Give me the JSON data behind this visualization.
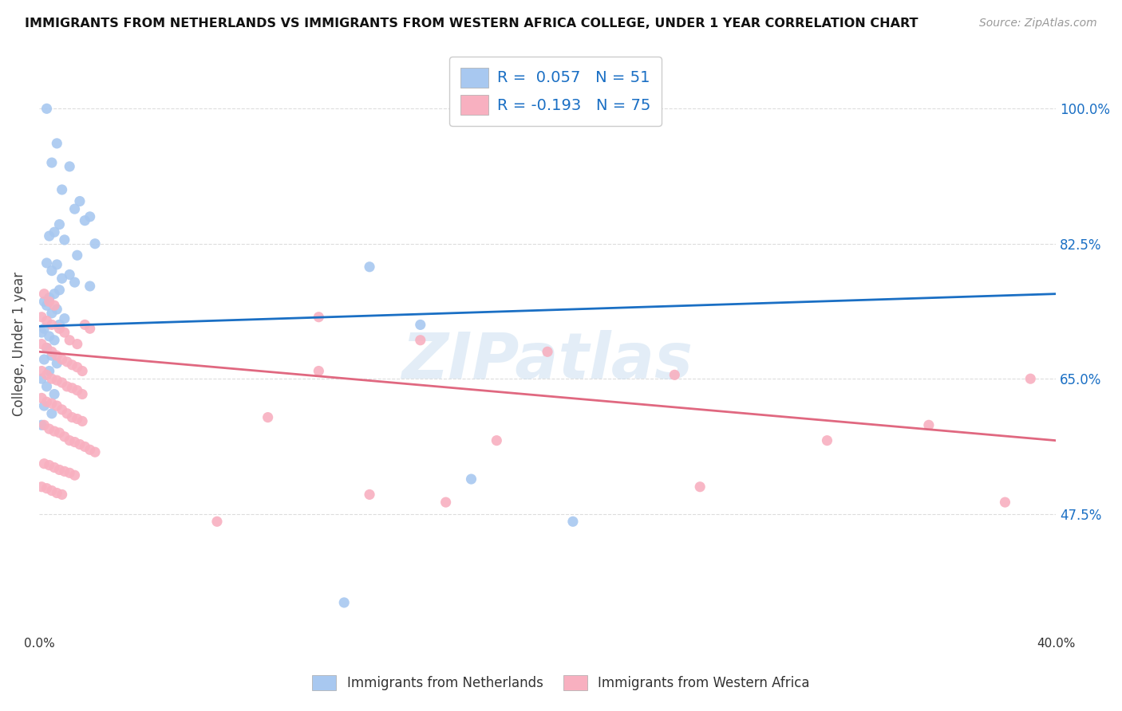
{
  "title": "IMMIGRANTS FROM NETHERLANDS VS IMMIGRANTS FROM WESTERN AFRICA COLLEGE, UNDER 1 YEAR CORRELATION CHART",
  "source": "Source: ZipAtlas.com",
  "ylabel": "College, Under 1 year",
  "xlim": [
    0.0,
    0.4
  ],
  "ylim": [
    0.32,
    1.07
  ],
  "yticks": [
    0.475,
    0.65,
    0.825,
    1.0
  ],
  "ytick_labels": [
    "47.5%",
    "65.0%",
    "82.5%",
    "100.0%"
  ],
  "xticks": [
    0.0,
    0.05,
    0.1,
    0.15,
    0.2,
    0.25,
    0.3,
    0.35,
    0.4
  ],
  "xtick_labels": [
    "0.0%",
    "",
    "",
    "",
    "",
    "",
    "",
    "",
    "40.0%"
  ],
  "blue_R": 0.057,
  "blue_N": 51,
  "pink_R": -0.193,
  "pink_N": 75,
  "blue_color": "#a8c8f0",
  "pink_color": "#f8b0c0",
  "blue_line_color": "#1a6fc4",
  "pink_line_color": "#e06880",
  "blue_line": [
    [
      0.0,
      0.718
    ],
    [
      0.4,
      0.76
    ]
  ],
  "pink_line": [
    [
      0.0,
      0.685
    ],
    [
      0.4,
      0.57
    ]
  ],
  "blue_scatter": [
    [
      0.003,
      1.0
    ],
    [
      0.007,
      0.955
    ],
    [
      0.005,
      0.93
    ],
    [
      0.012,
      0.925
    ],
    [
      0.009,
      0.895
    ],
    [
      0.016,
      0.88
    ],
    [
      0.014,
      0.87
    ],
    [
      0.02,
      0.86
    ],
    [
      0.008,
      0.85
    ],
    [
      0.018,
      0.855
    ],
    [
      0.006,
      0.84
    ],
    [
      0.004,
      0.835
    ],
    [
      0.01,
      0.83
    ],
    [
      0.022,
      0.825
    ],
    [
      0.015,
      0.81
    ],
    [
      0.003,
      0.8
    ],
    [
      0.007,
      0.798
    ],
    [
      0.005,
      0.79
    ],
    [
      0.012,
      0.785
    ],
    [
      0.009,
      0.78
    ],
    [
      0.014,
      0.775
    ],
    [
      0.02,
      0.77
    ],
    [
      0.008,
      0.765
    ],
    [
      0.006,
      0.76
    ],
    [
      0.004,
      0.755
    ],
    [
      0.002,
      0.75
    ],
    [
      0.003,
      0.745
    ],
    [
      0.007,
      0.74
    ],
    [
      0.005,
      0.735
    ],
    [
      0.01,
      0.728
    ],
    [
      0.008,
      0.72
    ],
    [
      0.002,
      0.715
    ],
    [
      0.001,
      0.71
    ],
    [
      0.004,
      0.705
    ],
    [
      0.006,
      0.7
    ],
    [
      0.003,
      0.69
    ],
    [
      0.005,
      0.68
    ],
    [
      0.002,
      0.675
    ],
    [
      0.007,
      0.67
    ],
    [
      0.004,
      0.66
    ],
    [
      0.001,
      0.65
    ],
    [
      0.003,
      0.64
    ],
    [
      0.006,
      0.63
    ],
    [
      0.002,
      0.615
    ],
    [
      0.005,
      0.605
    ],
    [
      0.001,
      0.59
    ],
    [
      0.13,
      0.795
    ],
    [
      0.15,
      0.72
    ],
    [
      0.17,
      0.52
    ],
    [
      0.21,
      0.465
    ],
    [
      0.12,
      0.36
    ]
  ],
  "pink_scatter": [
    [
      0.002,
      0.76
    ],
    [
      0.004,
      0.75
    ],
    [
      0.006,
      0.745
    ],
    [
      0.001,
      0.73
    ],
    [
      0.003,
      0.725
    ],
    [
      0.005,
      0.72
    ],
    [
      0.008,
      0.715
    ],
    [
      0.01,
      0.71
    ],
    [
      0.012,
      0.7
    ],
    [
      0.015,
      0.695
    ],
    [
      0.018,
      0.72
    ],
    [
      0.02,
      0.715
    ],
    [
      0.001,
      0.695
    ],
    [
      0.003,
      0.69
    ],
    [
      0.005,
      0.685
    ],
    [
      0.007,
      0.68
    ],
    [
      0.009,
      0.675
    ],
    [
      0.011,
      0.672
    ],
    [
      0.013,
      0.668
    ],
    [
      0.015,
      0.665
    ],
    [
      0.017,
      0.66
    ],
    [
      0.001,
      0.66
    ],
    [
      0.003,
      0.655
    ],
    [
      0.005,
      0.65
    ],
    [
      0.007,
      0.648
    ],
    [
      0.009,
      0.645
    ],
    [
      0.011,
      0.64
    ],
    [
      0.013,
      0.638
    ],
    [
      0.015,
      0.635
    ],
    [
      0.017,
      0.63
    ],
    [
      0.001,
      0.625
    ],
    [
      0.003,
      0.62
    ],
    [
      0.005,
      0.618
    ],
    [
      0.007,
      0.615
    ],
    [
      0.009,
      0.61
    ],
    [
      0.011,
      0.605
    ],
    [
      0.013,
      0.6
    ],
    [
      0.015,
      0.598
    ],
    [
      0.017,
      0.595
    ],
    [
      0.002,
      0.59
    ],
    [
      0.004,
      0.585
    ],
    [
      0.006,
      0.582
    ],
    [
      0.008,
      0.58
    ],
    [
      0.01,
      0.575
    ],
    [
      0.012,
      0.57
    ],
    [
      0.014,
      0.568
    ],
    [
      0.016,
      0.565
    ],
    [
      0.018,
      0.562
    ],
    [
      0.02,
      0.558
    ],
    [
      0.022,
      0.555
    ],
    [
      0.002,
      0.54
    ],
    [
      0.004,
      0.538
    ],
    [
      0.006,
      0.535
    ],
    [
      0.008,
      0.532
    ],
    [
      0.01,
      0.53
    ],
    [
      0.012,
      0.528
    ],
    [
      0.014,
      0.525
    ],
    [
      0.001,
      0.51
    ],
    [
      0.003,
      0.508
    ],
    [
      0.005,
      0.505
    ],
    [
      0.007,
      0.502
    ],
    [
      0.009,
      0.5
    ],
    [
      0.11,
      0.73
    ],
    [
      0.15,
      0.7
    ],
    [
      0.2,
      0.685
    ],
    [
      0.25,
      0.655
    ],
    [
      0.09,
      0.6
    ],
    [
      0.18,
      0.57
    ],
    [
      0.16,
      0.49
    ],
    [
      0.31,
      0.57
    ],
    [
      0.26,
      0.51
    ],
    [
      0.35,
      0.59
    ],
    [
      0.39,
      0.65
    ],
    [
      0.38,
      0.49
    ],
    [
      0.13,
      0.5
    ],
    [
      0.07,
      0.465
    ],
    [
      0.11,
      0.66
    ]
  ],
  "watermark_text": "ZIPatlas",
  "background_color": "#ffffff",
  "grid_color": "#dddddd"
}
